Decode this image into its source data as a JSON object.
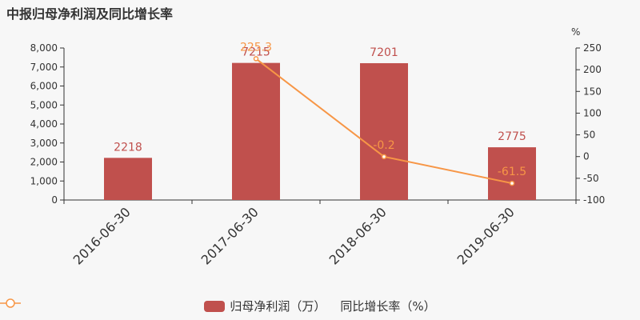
{
  "chart_data": {
    "type": "bar",
    "title": "中报归母净利润及同比增长率",
    "categories": [
      "2016-06-30",
      "2017-06-30",
      "2018-06-30",
      "2019-06-30"
    ],
    "series": [
      {
        "name": "归母净利润（万）",
        "type": "bar",
        "axis": "left",
        "values": [
          2218,
          7215,
          7201,
          2775
        ],
        "labels": [
          "2218",
          "7215",
          "7201",
          "2775"
        ],
        "color": "#c0504d"
      },
      {
        "name": "同比增长率（%）",
        "type": "line",
        "axis": "right",
        "values": [
          null,
          225.3,
          -0.2,
          -61.5
        ],
        "labels": [
          "",
          "225.3",
          "-0.2",
          "-61.5"
        ],
        "color": "#f79646"
      }
    ],
    "y_left": {
      "range": [
        0,
        8000
      ],
      "ticks": [
        "0",
        "1,000",
        "2,000",
        "3,000",
        "4,000",
        "5,000",
        "6,000",
        "7,000",
        "8,000"
      ]
    },
    "y_right": {
      "label": "%",
      "range": [
        -100,
        250
      ],
      "ticks": [
        "-100",
        "-50",
        "0",
        "50",
        "100",
        "150",
        "200",
        "250"
      ]
    },
    "grid": false,
    "legend_position": "bottom-center"
  },
  "colors": {
    "bar": "#c0504d",
    "line": "#f79646",
    "axis": "#333333",
    "background": "#f7f7f7"
  }
}
